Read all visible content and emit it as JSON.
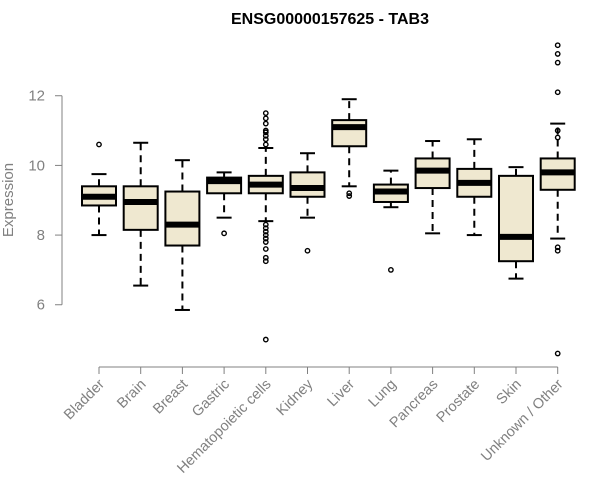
{
  "chart_data": {
    "type": "boxplot",
    "title": "ENSG00000157625 - TAB3",
    "xlabel": "",
    "ylabel": "Expression",
    "ylim": [
      4.5,
      13.6
    ],
    "yticks": [
      6,
      8,
      10,
      12
    ],
    "grid": false,
    "legend": "none",
    "colors": {
      "box_fill": "#efe8d0",
      "stroke": "#000000",
      "axis": "#808080"
    },
    "categories": [
      "Bladder",
      "Brain",
      "Breast",
      "Gastric",
      "Hematopoietic cells",
      "Kidney",
      "Liver",
      "Lung",
      "Pancreas",
      "Prostate",
      "Skin",
      "Unknown / Other"
    ],
    "boxes": [
      {
        "whisker_low": 8.0,
        "q1": 8.85,
        "median": 9.1,
        "q3": 9.4,
        "whisker_high": 9.75,
        "outliers": [
          10.6
        ]
      },
      {
        "whisker_low": 6.55,
        "q1": 8.15,
        "median": 8.95,
        "q3": 9.4,
        "whisker_high": 10.65,
        "outliers": []
      },
      {
        "whisker_low": 5.85,
        "q1": 7.7,
        "median": 8.3,
        "q3": 9.25,
        "whisker_high": 10.15,
        "outliers": []
      },
      {
        "whisker_low": 8.5,
        "q1": 9.2,
        "median": 9.55,
        "q3": 9.65,
        "whisker_high": 9.8,
        "outliers": [
          8.05
        ]
      },
      {
        "whisker_low": 8.4,
        "q1": 9.2,
        "median": 9.45,
        "q3": 9.7,
        "whisker_high": 10.5,
        "outliers": [
          11.5,
          11.35,
          11.2,
          11.0,
          10.95,
          10.85,
          10.75,
          10.6,
          8.3,
          8.2,
          8.1,
          8.0,
          7.9,
          7.8,
          7.6,
          7.35,
          7.25,
          5.0
        ]
      },
      {
        "whisker_low": 8.5,
        "q1": 9.1,
        "median": 9.35,
        "q3": 9.8,
        "whisker_high": 10.35,
        "outliers": [
          7.55
        ]
      },
      {
        "whisker_low": 9.4,
        "q1": 10.55,
        "median": 11.1,
        "q3": 11.3,
        "whisker_high": 11.9,
        "outliers": [
          9.2,
          9.12
        ]
      },
      {
        "whisker_low": 8.8,
        "q1": 8.95,
        "median": 9.25,
        "q3": 9.45,
        "whisker_high": 9.85,
        "outliers": [
          7.0
        ]
      },
      {
        "whisker_low": 8.05,
        "q1": 9.35,
        "median": 9.85,
        "q3": 10.2,
        "whisker_high": 10.7,
        "outliers": []
      },
      {
        "whisker_low": 8.0,
        "q1": 9.1,
        "median": 9.5,
        "q3": 9.9,
        "whisker_high": 10.75,
        "outliers": []
      },
      {
        "whisker_low": 6.75,
        "q1": 7.25,
        "median": 7.95,
        "q3": 9.7,
        "whisker_high": 9.95,
        "outliers": []
      },
      {
        "whisker_low": 7.9,
        "q1": 9.3,
        "median": 9.8,
        "q3": 10.2,
        "whisker_high": 11.2,
        "outliers": [
          13.45,
          13.2,
          12.95,
          12.1,
          11.0,
          10.8,
          7.65,
          7.55,
          4.6
        ]
      }
    ]
  }
}
